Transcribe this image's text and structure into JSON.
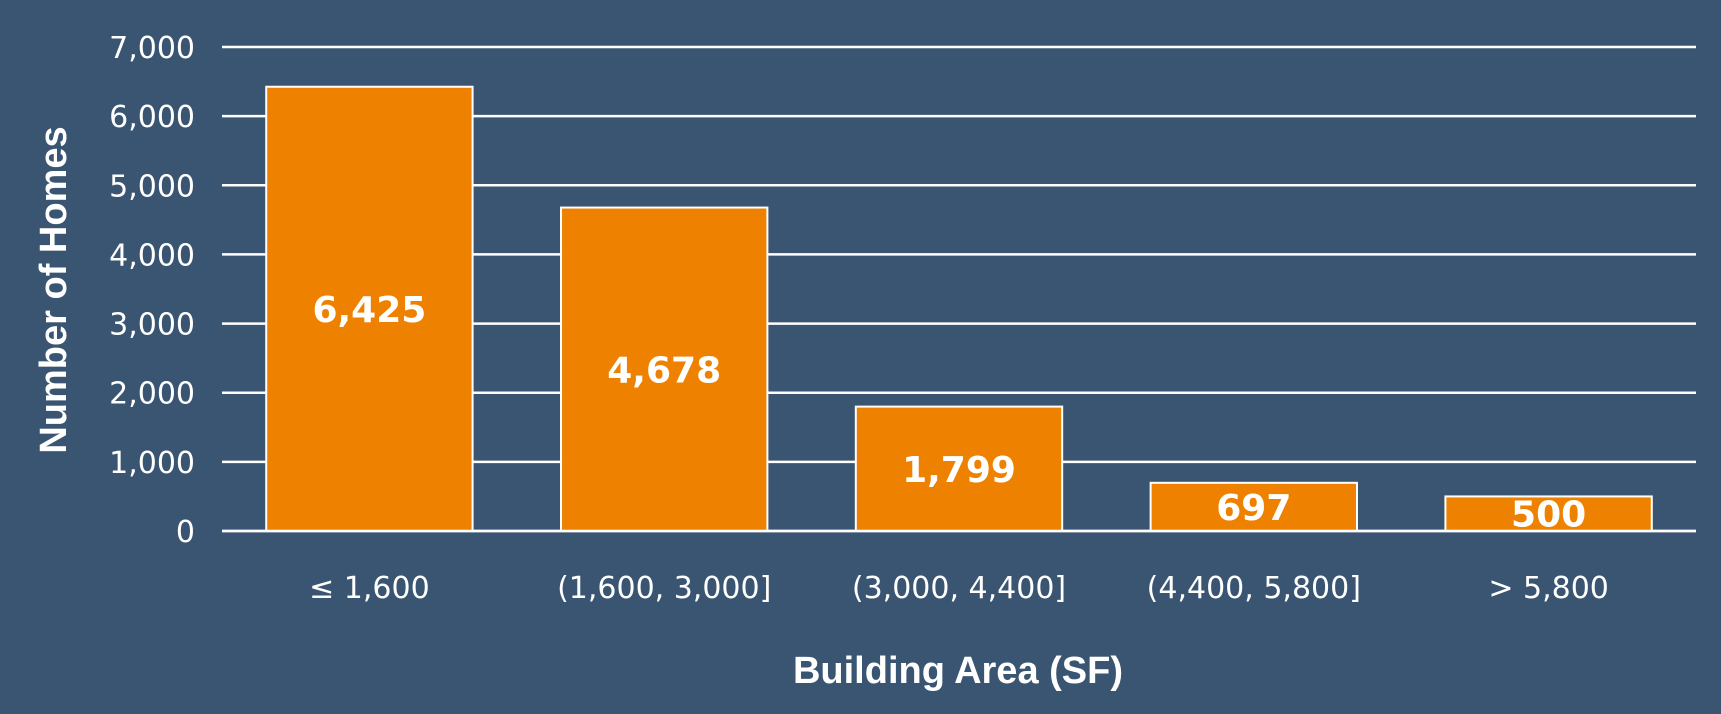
{
  "chart_data": {
    "type": "bar",
    "categories": [
      "≤ 1,600",
      "(1,600, 3,000]",
      "(3,000, 4,400]",
      "(4,400, 5,800]",
      "> 5,800"
    ],
    "values": [
      6425,
      4678,
      1799,
      697,
      500
    ],
    "data_labels": [
      "6,425",
      "4,678",
      "1,799",
      "697",
      "500"
    ],
    "title": "",
    "xlabel": "Building Area (SF)",
    "ylabel": "Number of Homes",
    "ylim": [
      0,
      7000
    ],
    "yticks": [
      0,
      1000,
      2000,
      3000,
      4000,
      5000,
      6000,
      7000
    ],
    "ytick_labels": [
      "0",
      "1,000",
      "2,000",
      "3,000",
      "4,000",
      "5,000",
      "6,000",
      "7,000"
    ],
    "grid": true,
    "legend": "none"
  },
  "colors": {
    "background": "#3a5572",
    "bar": "#ee8200",
    "bar_outline": "#ffffff",
    "gridline": "#ffffff",
    "text": "#ffffff"
  }
}
